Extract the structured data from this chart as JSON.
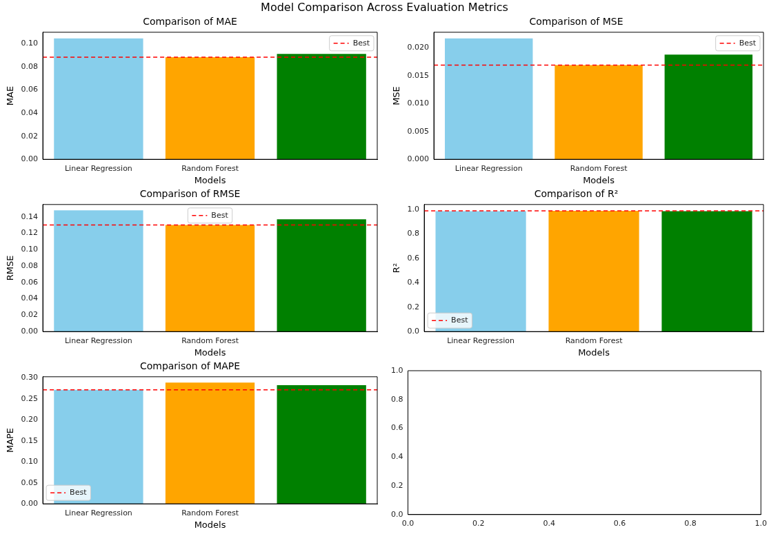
{
  "chart_data": [
    {
      "type": "bar",
      "title": "Comparison of MAE",
      "xlabel": "Models",
      "ylabel": "MAE",
      "annotations": [
        "Model Comparison Across Evaluation Metrics"
      ],
      "categories": [
        "Linear Regression",
        "Random Forest",
        null
      ],
      "values": [
        0.1047,
        0.0884,
        0.0912
      ],
      "colors": [
        "#87ceeb",
        "#ffa500",
        "#008000"
      ],
      "ylim": [
        0,
        0.11
      ],
      "yticks": [
        {
          "value": 0,
          "label": "0.00"
        },
        {
          "value": 0.02,
          "label": "0.02"
        },
        {
          "value": 0.04,
          "label": "0.04"
        },
        {
          "value": 0.06,
          "label": "0.06"
        },
        {
          "value": 0.08,
          "label": "0.08"
        },
        {
          "value": 0.1,
          "label": "0.10"
        }
      ],
      "ref_lines": [
        {
          "axis": "y",
          "value": 0.0884,
          "label": "Best",
          "color": "#ff0000",
          "line_style": "dashed"
        }
      ],
      "legend": "top right",
      "grid": false
    },
    {
      "type": "bar",
      "title": "Comparison of MSE",
      "xlabel": "Models",
      "ylabel": "MSE",
      "categories": [
        "Linear Regression",
        "Random Forest",
        null
      ],
      "values": [
        0.0217,
        0.0169,
        0.0188
      ],
      "colors": [
        "#87ceeb",
        "#ffa500",
        "#008000"
      ],
      "ylim": [
        0,
        0.0228
      ],
      "yticks": [
        {
          "value": 0,
          "label": "0.000"
        },
        {
          "value": 0.005,
          "label": "0.005"
        },
        {
          "value": 0.01,
          "label": "0.010"
        },
        {
          "value": 0.015,
          "label": "0.015"
        },
        {
          "value": 0.02,
          "label": "0.020"
        }
      ],
      "ref_lines": [
        {
          "axis": "y",
          "value": 0.0169,
          "label": "Best",
          "color": "#ff0000",
          "line_style": "dashed"
        }
      ],
      "legend": "top right",
      "grid": false
    },
    {
      "type": "bar",
      "title": "Comparison of RMSE",
      "xlabel": "Models",
      "ylabel": "RMSE",
      "categories": [
        "Linear Regression",
        "Random Forest",
        null
      ],
      "values": [
        0.148,
        0.13,
        0.137
      ],
      "colors": [
        "#87ceeb",
        "#ffa500",
        "#008000"
      ],
      "ylim": [
        0,
        0.155
      ],
      "yticks": [
        {
          "value": 0,
          "label": "0.00"
        },
        {
          "value": 0.02,
          "label": "0.02"
        },
        {
          "value": 0.04,
          "label": "0.04"
        },
        {
          "value": 0.06,
          "label": "0.06"
        },
        {
          "value": 0.08,
          "label": "0.08"
        },
        {
          "value": 0.1,
          "label": "0.10"
        },
        {
          "value": 0.12,
          "label": "0.12"
        },
        {
          "value": 0.14,
          "label": "0.14"
        }
      ],
      "ref_lines": [
        {
          "axis": "y",
          "value": 0.13,
          "label": "Best",
          "color": "#ff0000",
          "line_style": "dashed"
        }
      ],
      "legend": "top",
      "grid": false
    },
    {
      "type": "bar",
      "title": "Comparison of R²",
      "xlabel": "Models",
      "ylabel": "R²",
      "categories": [
        "Linear Regression",
        "Random Forest",
        null
      ],
      "values": [
        0.985,
        0.988,
        0.986
      ],
      "colors": [
        "#87ceeb",
        "#ffa500",
        "#008000"
      ],
      "ylim": [
        0,
        1.04
      ],
      "yticks": [
        {
          "value": 0,
          "label": "0.0"
        },
        {
          "value": 0.2,
          "label": "0.2"
        },
        {
          "value": 0.4,
          "label": "0.4"
        },
        {
          "value": 0.6,
          "label": "0.6"
        },
        {
          "value": 0.8,
          "label": "0.8"
        },
        {
          "value": 1,
          "label": "1.0"
        }
      ],
      "ref_lines": [
        {
          "axis": "y",
          "value": 0.988,
          "label": "Best",
          "color": "#ff0000",
          "line_style": "dashed"
        }
      ],
      "legend": "bottom left",
      "grid": false
    },
    {
      "type": "bar",
      "title": "Comparison of MAPE",
      "xlabel": "Models",
      "ylabel": "MAPE",
      "categories": [
        "Linear Regression",
        "Random Forest",
        null
      ],
      "values": [
        0.272,
        0.289,
        0.283
      ],
      "colors": [
        "#87ceeb",
        "#ffa500",
        "#008000"
      ],
      "ylim": [
        0,
        0.303
      ],
      "yticks": [
        {
          "value": 0,
          "label": "0.00"
        },
        {
          "value": 0.05,
          "label": "0.05"
        },
        {
          "value": 0.1,
          "label": "0.10"
        },
        {
          "value": 0.15,
          "label": "0.15"
        },
        {
          "value": 0.2,
          "label": "0.20"
        },
        {
          "value": 0.25,
          "label": "0.25"
        },
        {
          "value": 0.3,
          "label": "0.30"
        }
      ],
      "ref_lines": [
        {
          "axis": "y",
          "value": 0.272,
          "label": "Best",
          "color": "#ff0000",
          "line_style": "dashed"
        }
      ],
      "legend": "bottom left",
      "grid": false
    },
    {
      "type": "scatter",
      "xlim": [
        0,
        1
      ],
      "ylim": [
        0,
        1
      ],
      "xticks": [
        {
          "value": 0,
          "label": "0.0"
        },
        {
          "value": 0.2,
          "label": "0.2"
        },
        {
          "value": 0.4,
          "label": "0.4"
        },
        {
          "value": 0.6,
          "label": "0.6"
        },
        {
          "value": 0.8,
          "label": "0.8"
        },
        {
          "value": 1,
          "label": "1.0"
        }
      ],
      "yticks": [
        {
          "value": 0,
          "label": "0.0"
        },
        {
          "value": 0.2,
          "label": "0.2"
        },
        {
          "value": 0.4,
          "label": "0.4"
        },
        {
          "value": 0.6,
          "label": "0.6"
        },
        {
          "value": 0.8,
          "label": "0.8"
        },
        {
          "value": 1,
          "label": "1.0"
        }
      ],
      "grid": false
    }
  ]
}
